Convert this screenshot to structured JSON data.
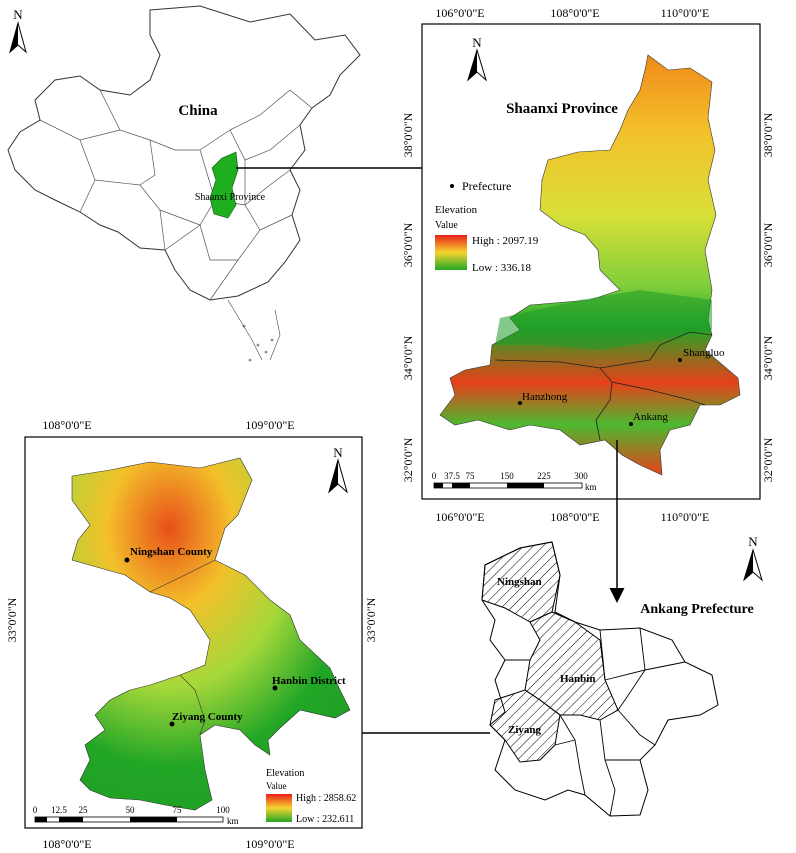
{
  "china_map": {
    "title": "China",
    "province_label": "Shaanxi Province",
    "north_label": "N"
  },
  "shaanxi_map": {
    "title": "Shaanxi Province",
    "north_label": "N",
    "top_ticks": [
      "106°0'0\"E",
      "108°0'0\"E",
      "110°0'0\"E"
    ],
    "bottom_ticks": [
      "106°0'0\"E",
      "108°0'0\"E",
      "110°0'0\"E"
    ],
    "left_ticks": [
      "38°0'0\"N",
      "36°0'0\"N",
      "34°0'0\"N",
      "32°0'0\"N"
    ],
    "right_ticks": [
      "38°0'0\"N",
      "36°0'0\"N",
      "34°0'0\"N",
      "32°0'0\"N"
    ],
    "legend": {
      "prefecture_label": "Prefecture",
      "elevation_title": "Elevation",
      "value_label": "Value",
      "high_label": "High : 2097.19",
      "low_label": "Low : 336.18"
    },
    "places": [
      "Shangluo",
      "Hanzhong",
      "Ankang"
    ],
    "scale": {
      "ticks": [
        "0",
        "37.5",
        "75",
        "150",
        "225",
        "300"
      ],
      "unit": "km"
    }
  },
  "ankang_map": {
    "title": "Ankang Prefecture",
    "north_label": "N",
    "counties": [
      "Ningshan",
      "Hanbin",
      "Ziyang"
    ]
  },
  "study_map": {
    "north_label": "N",
    "top_ticks": [
      "108°0'0\"E",
      "109°0'0\"E"
    ],
    "bottom_ticks": [
      "108°0'0\"E",
      "109°0'0\"E"
    ],
    "left_ticks": [
      "33°0'0\"N"
    ],
    "right_ticks": [
      "33°0'0\"N"
    ],
    "places": [
      "Ningshan County",
      "Hanbin District",
      "Ziyang County"
    ],
    "legend": {
      "elevation_title": "Elevation",
      "value_label": "Value",
      "high_label": "High : 2858.62",
      "low_label": "Low : 232.611"
    },
    "scale": {
      "ticks": [
        "0",
        "12.5",
        "25",
        "50",
        "75",
        "100"
      ],
      "unit": "km"
    }
  },
  "colors": {
    "elev_high": "#e8201a",
    "elev_mid": "#f5d530",
    "elev_low": "#22a626",
    "china_fill": "#ffffff",
    "shaanxi_highlight": "#1fae1f"
  }
}
